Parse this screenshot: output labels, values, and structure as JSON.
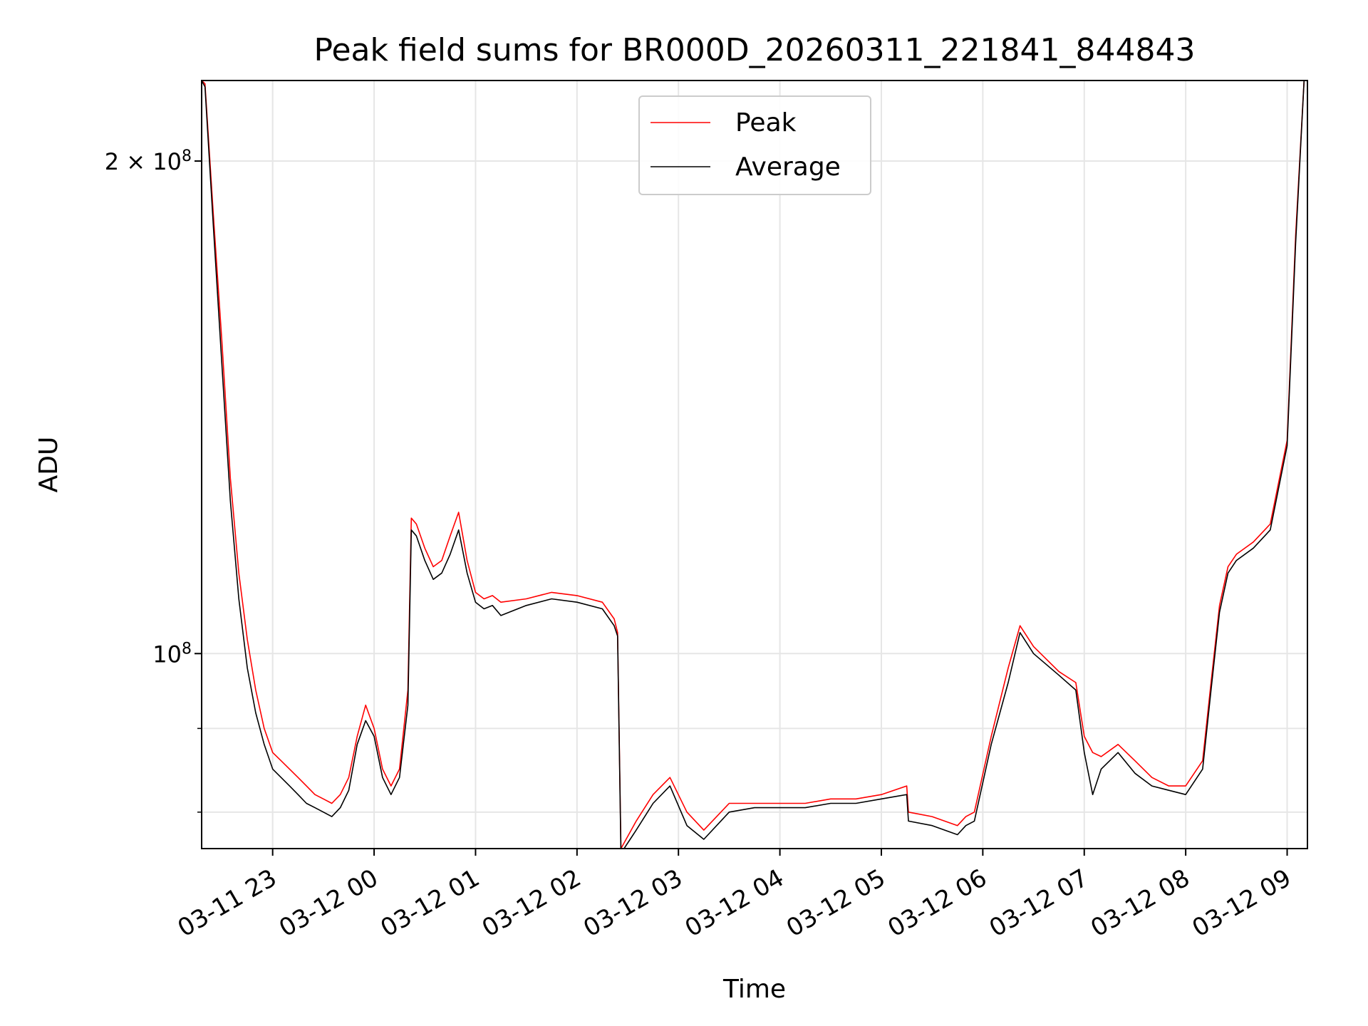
{
  "chart_data": {
    "type": "line",
    "title": "Peak field sums for BR000D_20260311_221841_844843",
    "xlabel": "Time",
    "ylabel": "ADU",
    "x_range": [
      "2026-03-11 22:18",
      "2026-03-12 09:12"
    ],
    "ylim": [
      76000000,
      224000000
    ],
    "yscale": "log",
    "grid": true,
    "legend_position": "upper center",
    "x_tick_labels": [
      "03-11 23",
      "03-12 00",
      "03-12 01",
      "03-12 02",
      "03-12 03",
      "03-12 04",
      "03-12 05",
      "03-12 06",
      "03-12 07",
      "03-12 08",
      "03-12 09"
    ],
    "x_ticks": [
      "2026-03-11 23:00",
      "2026-03-12 00:00",
      "2026-03-12 01:00",
      "2026-03-12 02:00",
      "2026-03-12 03:00",
      "2026-03-12 04:00",
      "2026-03-12 05:00",
      "2026-03-12 06:00",
      "2026-03-12 07:00",
      "2026-03-12 08:00",
      "2026-03-12 09:00"
    ],
    "y_major_ticks": [
      {
        "value": 100000000,
        "label_base": "10",
        "label_exp": "8"
      },
      {
        "value": 200000000,
        "label_base": "2 × 10",
        "label_exp": "8"
      }
    ],
    "y_minor_ticks": [
      80000000,
      90000000
    ],
    "series": [
      {
        "name": "Peak",
        "color": "#ff0000",
        "x": [
          "03-11 22:18",
          "03-11 22:20",
          "03-11 22:25",
          "03-11 22:30",
          "03-11 22:35",
          "03-11 22:40",
          "03-11 22:45",
          "03-11 22:50",
          "03-11 22:55",
          "03-11 23:00",
          "03-11 23:05",
          "03-11 23:10",
          "03-11 23:15",
          "03-11 23:20",
          "03-11 23:25",
          "03-11 23:30",
          "03-11 23:35",
          "03-11 23:40",
          "03-11 23:45",
          "03-11 23:50",
          "03-11 23:55",
          "03-12 00:00",
          "03-12 00:05",
          "03-12 00:10",
          "03-12 00:15",
          "03-12 00:20",
          "03-12 00:22",
          "03-12 00:25",
          "03-12 00:30",
          "03-12 00:35",
          "03-12 00:40",
          "03-12 00:45",
          "03-12 00:50",
          "03-12 00:55",
          "03-12 01:00",
          "03-12 01:05",
          "03-12 01:10",
          "03-12 01:15",
          "03-12 01:30",
          "03-12 01:45",
          "03-12 02:00",
          "03-12 02:15",
          "03-12 02:22",
          "03-12 02:24",
          "03-12 02:26",
          "03-12 02:35",
          "03-12 02:45",
          "03-12 02:55",
          "03-12 03:05",
          "03-12 03:15",
          "03-12 03:30",
          "03-12 03:45",
          "03-12 04:00",
          "03-12 04:15",
          "03-12 04:30",
          "03-12 04:45",
          "03-12 05:00",
          "03-12 05:15",
          "03-12 05:16",
          "03-12 05:30",
          "03-12 05:45",
          "03-12 05:50",
          "03-12 05:55",
          "03-12 06:05",
          "03-12 06:15",
          "03-12 06:22",
          "03-12 06:30",
          "03-12 06:45",
          "03-12 06:55",
          "03-12 07:00",
          "03-12 07:05",
          "03-12 07:10",
          "03-12 07:20",
          "03-12 07:30",
          "03-12 07:40",
          "03-12 07:50",
          "03-12 08:00",
          "03-12 08:10",
          "03-12 08:15",
          "03-12 08:20",
          "03-12 08:25",
          "03-12 08:30",
          "03-12 08:40",
          "03-12 08:50",
          "03-12 09:00",
          "03-12 09:05",
          "03-12 09:10"
        ],
        "values": [
          224000000,
          223000000,
          185000000,
          155000000,
          128000000,
          112000000,
          102000000,
          95000000,
          90000000,
          87000000,
          86000000,
          85000000,
          84000000,
          83000000,
          82000000,
          81500000,
          81000000,
          82000000,
          84000000,
          89000000,
          93000000,
          90000000,
          85000000,
          83000000,
          85000000,
          95000000,
          121000000,
          120000000,
          116000000,
          113000000,
          114000000,
          118000000,
          122000000,
          114000000,
          109000000,
          108000000,
          108500000,
          107500000,
          108000000,
          109000000,
          108500000,
          107500000,
          105000000,
          103000000,
          76000000,
          79000000,
          82000000,
          84000000,
          80000000,
          78000000,
          81000000,
          81000000,
          81000000,
          81000000,
          81500000,
          81500000,
          82000000,
          83000000,
          80000000,
          79500000,
          78500000,
          79500000,
          80000000,
          89000000,
          98000000,
          104000000,
          101000000,
          97500000,
          96000000,
          89000000,
          87000000,
          86500000,
          88000000,
          86000000,
          84000000,
          83000000,
          83000000,
          86000000,
          96000000,
          107000000,
          113000000,
          115000000,
          117000000,
          120000000,
          135000000,
          180000000,
          224000000
        ]
      },
      {
        "name": "Average",
        "color": "#000000",
        "x": [
          "03-11 22:18",
          "03-11 22:20",
          "03-11 22:25",
          "03-11 22:30",
          "03-11 22:35",
          "03-11 22:40",
          "03-11 22:45",
          "03-11 22:50",
          "03-11 22:55",
          "03-11 23:00",
          "03-11 23:05",
          "03-11 23:10",
          "03-11 23:15",
          "03-11 23:20",
          "03-11 23:25",
          "03-11 23:30",
          "03-11 23:35",
          "03-11 23:40",
          "03-11 23:45",
          "03-11 23:50",
          "03-11 23:55",
          "03-12 00:00",
          "03-12 00:05",
          "03-12 00:10",
          "03-12 00:15",
          "03-12 00:20",
          "03-12 00:22",
          "03-12 00:25",
          "03-12 00:30",
          "03-12 00:35",
          "03-12 00:40",
          "03-12 00:45",
          "03-12 00:50",
          "03-12 00:55",
          "03-12 01:00",
          "03-12 01:05",
          "03-12 01:10",
          "03-12 01:15",
          "03-12 01:30",
          "03-12 01:45",
          "03-12 02:00",
          "03-12 02:15",
          "03-12 02:22",
          "03-12 02:24",
          "03-12 02:26",
          "03-12 02:35",
          "03-12 02:45",
          "03-12 02:55",
          "03-12 03:05",
          "03-12 03:15",
          "03-12 03:30",
          "03-12 03:45",
          "03-12 04:00",
          "03-12 04:15",
          "03-12 04:30",
          "03-12 04:45",
          "03-12 05:00",
          "03-12 05:15",
          "03-12 05:16",
          "03-12 05:30",
          "03-12 05:45",
          "03-12 05:50",
          "03-12 05:55",
          "03-12 06:05",
          "03-12 06:15",
          "03-12 06:22",
          "03-12 06:30",
          "03-12 06:45",
          "03-12 06:55",
          "03-12 07:00",
          "03-12 07:05",
          "03-12 07:10",
          "03-12 07:20",
          "03-12 07:30",
          "03-12 07:40",
          "03-12 07:50",
          "03-12 08:00",
          "03-12 08:10",
          "03-12 08:15",
          "03-12 08:20",
          "03-12 08:25",
          "03-12 08:30",
          "03-12 08:40",
          "03-12 08:50",
          "03-12 09:00",
          "03-12 09:05",
          "03-12 09:10"
        ],
        "values": [
          224000000,
          222000000,
          182000000,
          150000000,
          124000000,
          108000000,
          98000000,
          92000000,
          88000000,
          85000000,
          84000000,
          83000000,
          82000000,
          81000000,
          80500000,
          80000000,
          79500000,
          80500000,
          82500000,
          88000000,
          91000000,
          89000000,
          84000000,
          82000000,
          84000000,
          93000000,
          119000000,
          118000000,
          114000000,
          111000000,
          112000000,
          115000000,
          119000000,
          112000000,
          107500000,
          106500000,
          107000000,
          105500000,
          107000000,
          108000000,
          107500000,
          106500000,
          104000000,
          102500000,
          75500000,
          78000000,
          81000000,
          83000000,
          78500000,
          77000000,
          80000000,
          80500000,
          80500000,
          80500000,
          81000000,
          81000000,
          81500000,
          82000000,
          79000000,
          78500000,
          77500000,
          78500000,
          79000000,
          88000000,
          96000000,
          103000000,
          100000000,
          97000000,
          95000000,
          87000000,
          82000000,
          85000000,
          87000000,
          84500000,
          83000000,
          82500000,
          82000000,
          85000000,
          95000000,
          106000000,
          112000000,
          114000000,
          116000000,
          119000000,
          134000000,
          178000000,
          224000000
        ]
      }
    ]
  }
}
